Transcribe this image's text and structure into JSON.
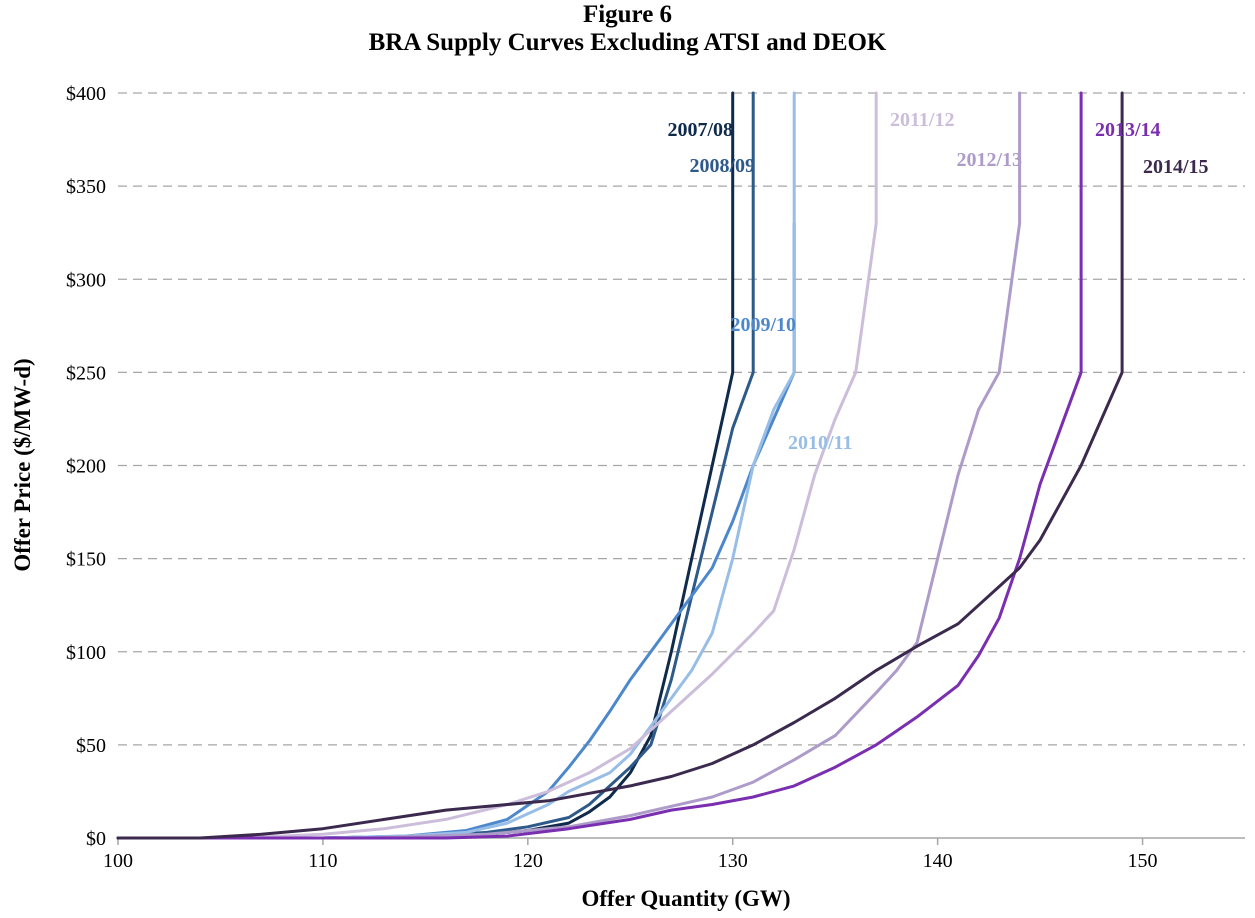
{
  "figure_label": "Figure 6",
  "chart_data": {
    "type": "line",
    "title": "BRA Supply Curves Excluding ATSI and DEOK",
    "xlabel": "Offer Quantity (GW)",
    "ylabel": "Offer Price ($/MW-d)",
    "xlim": [
      100,
      155
    ],
    "ylim": [
      0,
      400
    ],
    "x_ticks": [
      100,
      110,
      120,
      130,
      140,
      150
    ],
    "y_ticks": [
      0,
      50,
      100,
      150,
      200,
      250,
      300,
      350,
      400
    ],
    "y_tick_labels": [
      "$0",
      "$50",
      "$100",
      "$150",
      "$200",
      "$250",
      "$300",
      "$350",
      "$400"
    ],
    "grid": "horizontal dashed",
    "legend": "inline labels",
    "series": [
      {
        "name": "2007/08",
        "color": "#0f2a4a",
        "points": [
          [
            100,
            0
          ],
          [
            110,
            0
          ],
          [
            115,
            1
          ],
          [
            118,
            2
          ],
          [
            120,
            4
          ],
          [
            122,
            8
          ],
          [
            123,
            14
          ],
          [
            124,
            22
          ],
          [
            125,
            35
          ],
          [
            126,
            55
          ],
          [
            127,
            100
          ],
          [
            128,
            150
          ],
          [
            129,
            200
          ],
          [
            130,
            250
          ],
          [
            130,
            400
          ]
        ]
      },
      {
        "name": "2008/09",
        "color": "#2e5a8a",
        "points": [
          [
            100,
            0
          ],
          [
            110,
            0
          ],
          [
            115,
            1
          ],
          [
            118,
            3
          ],
          [
            120,
            6
          ],
          [
            122,
            11
          ],
          [
            123,
            18
          ],
          [
            124,
            28
          ],
          [
            125,
            38
          ],
          [
            126,
            50
          ],
          [
            127,
            85
          ],
          [
            128,
            130
          ],
          [
            129,
            175
          ],
          [
            130,
            220
          ],
          [
            131,
            250
          ],
          [
            131,
            400
          ]
        ]
      },
      {
        "name": "2009/10",
        "color": "#4d88cc",
        "points": [
          [
            100,
            0
          ],
          [
            110,
            0
          ],
          [
            114,
            1
          ],
          [
            117,
            4
          ],
          [
            119,
            10
          ],
          [
            121,
            25
          ],
          [
            122,
            38
          ],
          [
            123,
            52
          ],
          [
            124,
            68
          ],
          [
            125,
            85
          ],
          [
            127,
            115
          ],
          [
            129,
            145
          ],
          [
            130,
            170
          ],
          [
            131,
            200
          ],
          [
            132,
            225
          ],
          [
            133,
            250
          ],
          [
            133,
            330
          ]
        ]
      },
      {
        "name": "2010/11",
        "color": "#98bde6",
        "points": [
          [
            100,
            0
          ],
          [
            110,
            0
          ],
          [
            114,
            1
          ],
          [
            117,
            3
          ],
          [
            119,
            8
          ],
          [
            121,
            18
          ],
          [
            122,
            25
          ],
          [
            124,
            35
          ],
          [
            125,
            45
          ],
          [
            126,
            60
          ],
          [
            127,
            75
          ],
          [
            128,
            90
          ],
          [
            129,
            110
          ],
          [
            130,
            150
          ],
          [
            131,
            200
          ],
          [
            132,
            230
          ],
          [
            133,
            250
          ],
          [
            133,
            400
          ]
        ]
      },
      {
        "name": "2011/12",
        "color": "#ccbedb",
        "points": [
          [
            100,
            0
          ],
          [
            106,
            0
          ],
          [
            110,
            2
          ],
          [
            113,
            5
          ],
          [
            116,
            10
          ],
          [
            119,
            18
          ],
          [
            121,
            25
          ],
          [
            123,
            35
          ],
          [
            125,
            48
          ],
          [
            127,
            68
          ],
          [
            129,
            88
          ],
          [
            131,
            110
          ],
          [
            132,
            122
          ],
          [
            133,
            155
          ],
          [
            134,
            195
          ],
          [
            135,
            225
          ],
          [
            136,
            250
          ],
          [
            137,
            330
          ],
          [
            137,
            400
          ]
        ]
      },
      {
        "name": "2012/13",
        "color": "#ad9bc9",
        "points": [
          [
            100,
            0
          ],
          [
            112,
            0
          ],
          [
            118,
            2
          ],
          [
            122,
            6
          ],
          [
            125,
            12
          ],
          [
            127,
            17
          ],
          [
            129,
            22
          ],
          [
            131,
            30
          ],
          [
            133,
            42
          ],
          [
            135,
            55
          ],
          [
            137,
            78
          ],
          [
            138,
            90
          ],
          [
            139,
            105
          ],
          [
            140,
            150
          ],
          [
            141,
            195
          ],
          [
            142,
            230
          ],
          [
            143,
            250
          ],
          [
            144,
            330
          ],
          [
            144,
            400
          ]
        ]
      },
      {
        "name": "2013/14",
        "color": "#7a2eb0",
        "points": [
          [
            100,
            0
          ],
          [
            116,
            0
          ],
          [
            119,
            1
          ],
          [
            122,
            5
          ],
          [
            125,
            10
          ],
          [
            127,
            15
          ],
          [
            129,
            18
          ],
          [
            131,
            22
          ],
          [
            133,
            28
          ],
          [
            135,
            38
          ],
          [
            137,
            50
          ],
          [
            139,
            65
          ],
          [
            141,
            82
          ],
          [
            142,
            98
          ],
          [
            143,
            118
          ],
          [
            144,
            150
          ],
          [
            145,
            190
          ],
          [
            146,
            220
          ],
          [
            147,
            250
          ],
          [
            147,
            400
          ]
        ]
      },
      {
        "name": "2014/15",
        "color": "#3b2a4d",
        "points": [
          [
            100,
            0
          ],
          [
            104,
            0
          ],
          [
            107,
            2
          ],
          [
            110,
            5
          ],
          [
            113,
            10
          ],
          [
            116,
            15
          ],
          [
            119,
            18
          ],
          [
            121,
            20
          ],
          [
            123,
            24
          ],
          [
            125,
            28
          ],
          [
            127,
            33
          ],
          [
            129,
            40
          ],
          [
            131,
            50
          ],
          [
            133,
            62
          ],
          [
            135,
            75
          ],
          [
            137,
            90
          ],
          [
            139,
            103
          ],
          [
            141,
            115
          ],
          [
            142,
            125
          ],
          [
            143,
            135
          ],
          [
            144,
            145
          ],
          [
            145,
            160
          ],
          [
            146,
            180
          ],
          [
            147,
            200
          ],
          [
            148,
            225
          ],
          [
            149,
            250
          ],
          [
            149,
            400
          ]
        ]
      }
    ]
  }
}
